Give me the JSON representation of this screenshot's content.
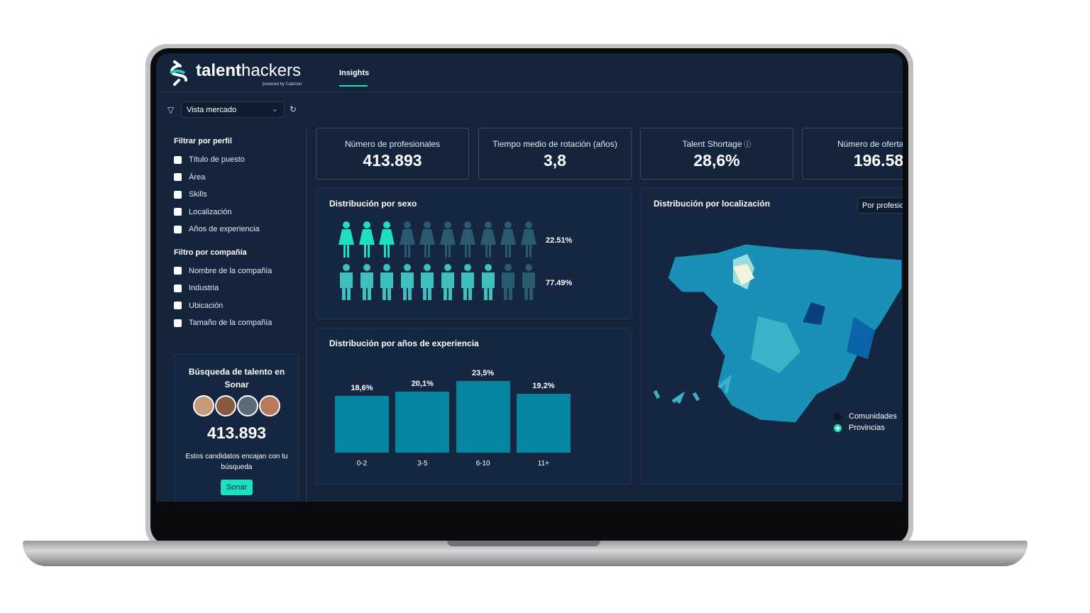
{
  "brand": {
    "name_bold": "talent",
    "name_light": "hackers",
    "tagline": "powered by Catenon"
  },
  "nav": {
    "tabs": [
      {
        "label": "Insights",
        "active": true
      }
    ]
  },
  "toolbar": {
    "view_select": "Vista mercado",
    "filter_icon": "funnel-icon",
    "refresh_icon": "refresh-icon"
  },
  "sidebar": {
    "profile_heading": "Filtrar por perfil",
    "profile_filters": [
      "Título de puesto",
      "Área",
      "Skills",
      "Localización",
      "Años de experiencia"
    ],
    "company_heading": "Filtro por compañía",
    "company_filters": [
      "Nombre de la compañía",
      "Industria",
      "Ubicación",
      "Tamaño de la compañía"
    ],
    "sonar": {
      "title": "Búsqueda de talento en Sonar",
      "count": "413.893",
      "description": "Estos candidatos encajan con tu búsqueda",
      "button": "Sonar"
    }
  },
  "kpis": [
    {
      "label": "Número de profesionales",
      "value": "413.893"
    },
    {
      "label": "Tiempo medio de rotación (años)",
      "value": "3,8"
    },
    {
      "label": "Talent Shortage",
      "value": "28,6%",
      "info_icon": "info-icon"
    },
    {
      "label": "Número de ofertas de",
      "value": "196.58"
    }
  ],
  "gender": {
    "title": "Distribución por sexo",
    "rows": [
      {
        "icon": "woman-icon",
        "highlighted": 3,
        "total": 10,
        "percent": "22.51%"
      },
      {
        "icon": "man-icon",
        "highlighted": 8,
        "total": 10,
        "percent": "77.49%"
      }
    ]
  },
  "location": {
    "title": "Distribución por localización",
    "select": "Por profesio",
    "legend": [
      {
        "label": "Comunidades",
        "selected": false
      },
      {
        "label": "Provincias",
        "selected": true
      }
    ]
  },
  "colors": {
    "bg": "#13243c",
    "accent": "#1de0c0",
    "bar": "#0585a0",
    "dim": "#2a6a80"
  },
  "chart_data": {
    "type": "bar",
    "title": "Distribución por años de experiencia",
    "categories": [
      "0-2",
      "3-5",
      "6-10",
      "11+"
    ],
    "values": [
      18.6,
      20.1,
      23.5,
      19.2
    ],
    "labels": [
      "18,6%",
      "20,1%",
      "23,5%",
      "19,2%"
    ]
  }
}
